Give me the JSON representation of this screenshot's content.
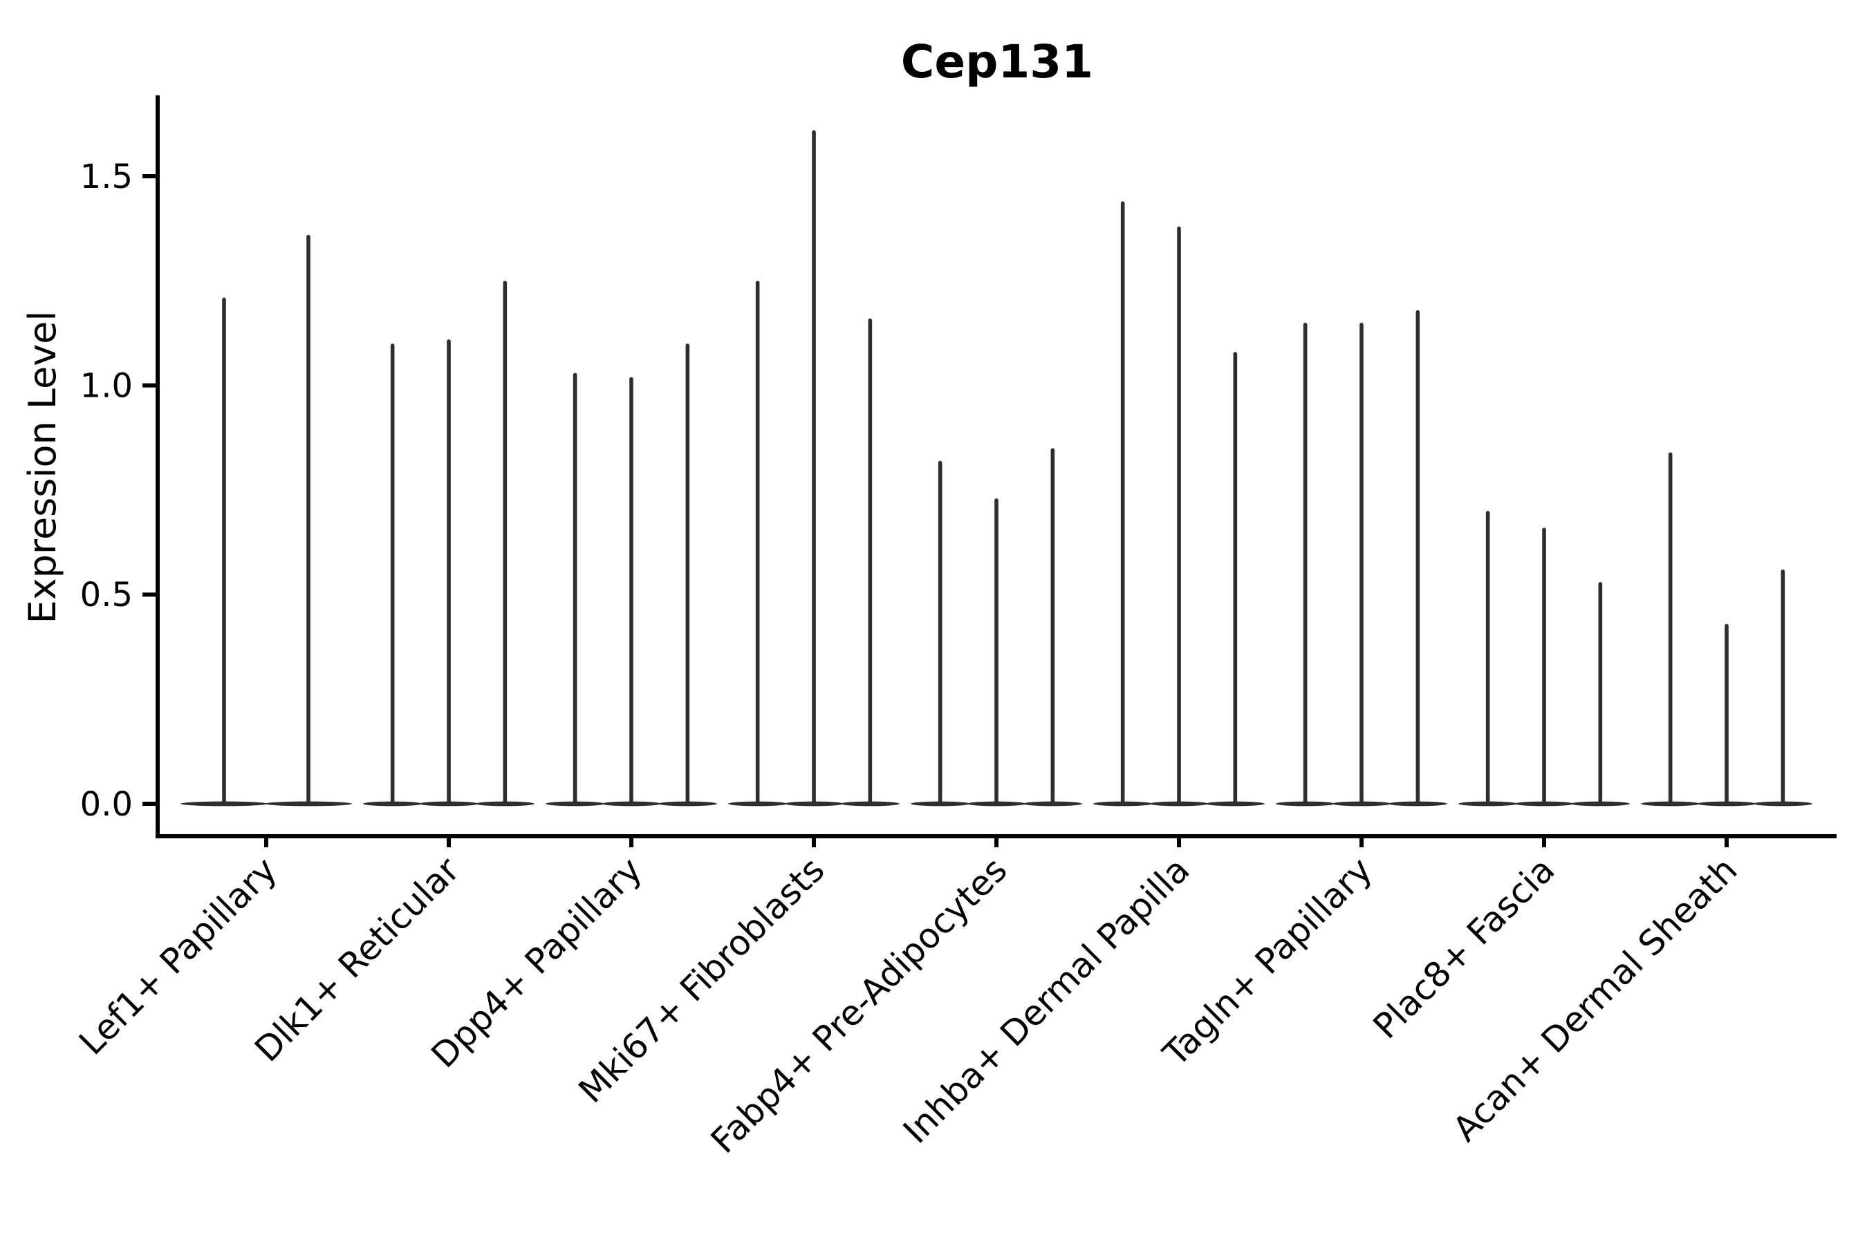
{
  "page": {
    "background": "#ffffff"
  },
  "chart_data": {
    "type": "violin",
    "title": "Cep131",
    "ylabel": "Expression Level",
    "xlabel": "",
    "ylim": [
      -0.08,
      1.69
    ],
    "yticks": [
      0,
      0.5,
      1.0,
      1.5
    ],
    "ytick_labels": [
      "0.0",
      "0.5",
      "1.0",
      "1.5"
    ],
    "grid": false,
    "legend": "none",
    "x_label_rotation_deg": 45,
    "violin_style": "narrow-spike-violins-with-flat-base-at-zero",
    "violins_per_category_note": "each category shows thin vertical density spikes rising from a flattened base at expression 0; values below are the peak (max) expression of each spike, left to right",
    "colors": {
      "violin": "#2e2e2e",
      "axis": "#000000",
      "text": "#000000",
      "background": "#ffffff"
    },
    "categories": [
      "Lef1+ Papillary",
      "Dlk1+ Reticular",
      "Dpp4+ Papillary",
      "Mki67+ Fibroblasts",
      "Fabp4+ Pre-Adipocytes",
      "Inhba+ Dermal Papilla",
      "Tagln+ Papillary",
      "Plac8+ Fascia",
      "Acan+ Dermal Sheath"
    ],
    "series": [
      {
        "category": "Lef1+ Papillary",
        "violin_peaks": [
          1.21,
          1.36
        ]
      },
      {
        "category": "Dlk1+ Reticular",
        "violin_peaks": [
          1.1,
          1.11,
          1.25
        ]
      },
      {
        "category": "Dpp4+ Papillary",
        "violin_peaks": [
          1.03,
          1.02,
          1.1
        ]
      },
      {
        "category": "Mki67+ Fibroblasts",
        "violin_peaks": [
          1.25,
          1.61,
          1.16
        ]
      },
      {
        "category": "Fabp4+ Pre-Adipocytes",
        "violin_peaks": [
          0.82,
          0.73,
          0.85
        ]
      },
      {
        "category": "Inhba+ Dermal Papilla",
        "violin_peaks": [
          1.44,
          1.38,
          1.08
        ]
      },
      {
        "category": "Tagln+ Papillary",
        "violin_peaks": [
          1.15,
          1.15,
          1.18
        ]
      },
      {
        "category": "Plac8+ Fascia",
        "violin_peaks": [
          0.7,
          0.66,
          0.53
        ]
      },
      {
        "category": "Acan+ Dermal Sheath",
        "violin_peaks": [
          0.84,
          0.43,
          0.56
        ]
      }
    ]
  }
}
